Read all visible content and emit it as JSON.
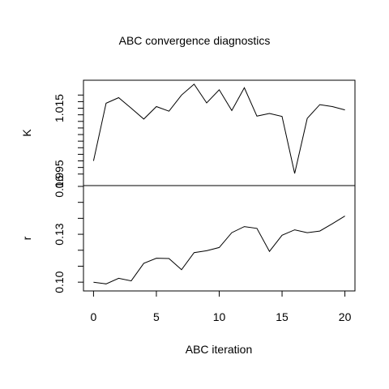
{
  "chart_data": {
    "type": "line",
    "title": "ABC convergence diagnostics",
    "xlabel": "ABC iteration",
    "xlim": [
      -0.8,
      20.8
    ],
    "x_ticks": [
      "0",
      "5",
      "10",
      "15",
      "20"
    ],
    "x": [
      0,
      1,
      2,
      3,
      4,
      5,
      6,
      7,
      8,
      9,
      10,
      11,
      12,
      13,
      14,
      15,
      16,
      17,
      18,
      19,
      20
    ],
    "panels": [
      {
        "ylabel": "K",
        "ylim": [
          0.9915,
          1.0235
        ],
        "y_ticks": [
          {
            "value": 0.995,
            "label": "0.995"
          },
          {
            "value": 1.015,
            "label": "1.015"
          }
        ],
        "minor_ticks": [
          0.997,
          0.999,
          1.001,
          1.003,
          1.005,
          1.007,
          1.009,
          1.011,
          1.013,
          1.017,
          1.019
        ],
        "series": [
          {
            "values": [
              0.999,
              1.0165,
              1.0182,
              1.015,
              1.0117,
              1.0155,
              1.0141,
              1.019,
              1.0223,
              1.0166,
              1.0206,
              1.0143,
              1.0212,
              1.0126,
              1.0134,
              1.0125,
              0.9952,
              1.0119,
              1.0161,
              1.0155,
              1.0145
            ]
          }
        ]
      },
      {
        "ylabel": "r",
        "ylim": [
          0.0945,
          0.1605
        ],
        "y_ticks": [
          {
            "value": 0.1,
            "label": "0.10"
          },
          {
            "value": 0.13,
            "label": "0.13"
          },
          {
            "value": 0.16,
            "label": "0.16"
          }
        ],
        "minor_ticks": [
          0.11,
          0.12,
          0.14,
          0.15
        ],
        "series": [
          {
            "values": [
              0.1,
              0.0989,
              0.1024,
              0.1008,
              0.1118,
              0.115,
              0.1148,
              0.1078,
              0.1185,
              0.1197,
              0.1217,
              0.131,
              0.1348,
              0.1337,
              0.1193,
              0.1294,
              0.1328,
              0.131,
              0.132,
              0.1366,
              0.1414
            ]
          }
        ]
      }
    ]
  }
}
